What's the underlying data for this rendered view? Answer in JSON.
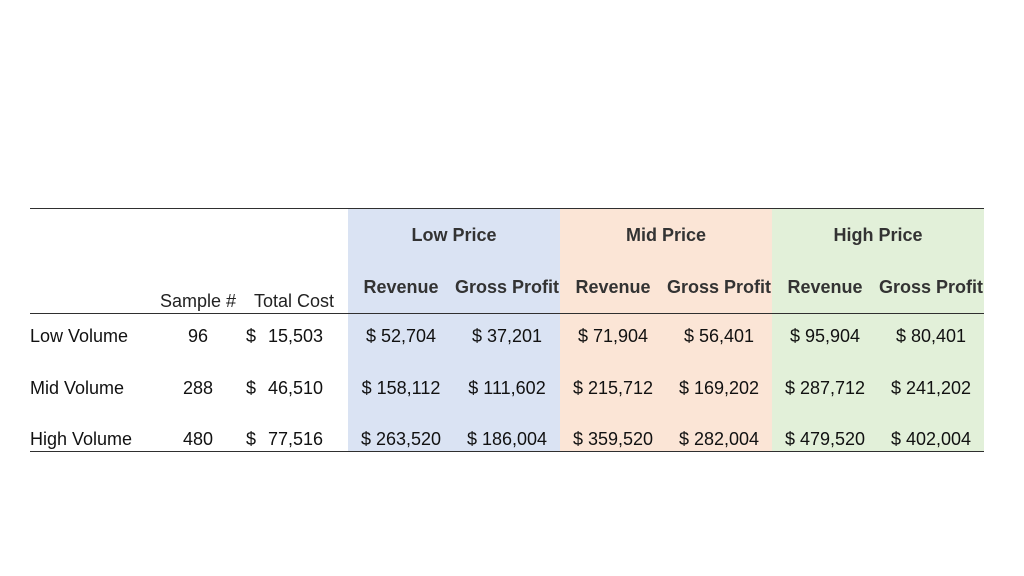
{
  "table": {
    "groups": [
      {
        "label": "Low Price",
        "color": "#dae3f3"
      },
      {
        "label": "Mid Price",
        "color": "#fbe5d6"
      },
      {
        "label": "High Price",
        "color": "#e2f0d9"
      }
    ],
    "headers": {
      "sample": "Sample #",
      "total_cost": "Total Cost",
      "subcolumns": [
        "Revenue",
        "Gross Profit",
        "Revenue",
        "Gross Profit",
        "Revenue",
        "Gross Profit"
      ]
    },
    "rows": [
      {
        "label": "Low Volume",
        "sample": "96",
        "cost_symbol": "$",
        "cost_value": "15,503",
        "values": [
          "$ 52,704",
          "$ 37,201",
          "$ 71,904",
          "$ 56,401",
          "$ 95,904",
          "$ 80,401"
        ]
      },
      {
        "label": "Mid Volume",
        "sample": "288",
        "cost_symbol": "$",
        "cost_value": "46,510",
        "values": [
          "$ 158,112",
          "$ 111,602",
          "$ 215,712",
          "$ 169,202",
          "$ 287,712",
          "$ 241,202"
        ]
      },
      {
        "label": "High Volume",
        "sample": "480",
        "cost_symbol": "$",
        "cost_value": "77,516",
        "values": [
          "$ 263,520",
          "$ 186,004",
          "$ 359,520",
          "$ 282,004",
          "$ 479,520",
          "$ 402,004"
        ]
      }
    ]
  }
}
